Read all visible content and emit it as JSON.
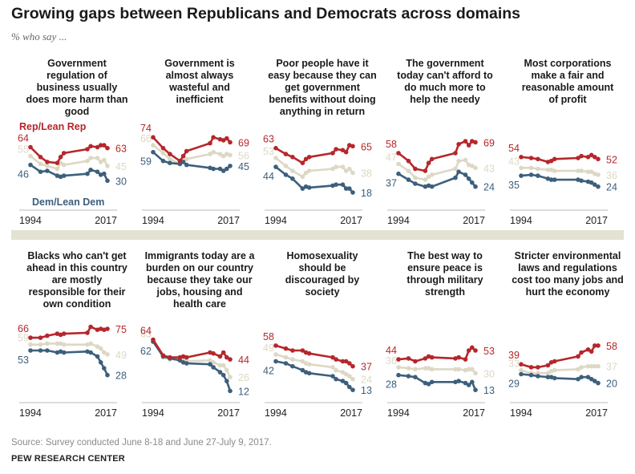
{
  "header": {
    "title": "Growing gaps between Republicans and Democrats across domains",
    "subtitle": "% who say ..."
  },
  "footer": {
    "source": "Source: Survey conducted June 8-18 and June 27-July 9, 2017.",
    "brand": "PEW RESEARCH CENTER"
  },
  "colors": {
    "rep": "#b5272b",
    "dem": "#3c5f7c",
    "total": "#ddd8c4",
    "axis": "#bbbbbb",
    "band": "#e3e2d3"
  },
  "chart_data": [
    {
      "type": "line",
      "title": "Government regulation of business usually does more harm than good",
      "x": [
        1994,
        1997,
        1999,
        2002,
        2003,
        2004,
        2011,
        2012,
        2014,
        2015,
        2016,
        2017
      ],
      "xlabels": [
        "1994",
        "2017"
      ],
      "series_labels": [
        "Rep/Lean Rep",
        "Dem/Lean Dem"
      ],
      "ylim": [
        0,
        100
      ],
      "series": [
        {
          "name": "Rep/Lean Rep",
          "values": [
            64,
            54,
            49,
            48,
            54,
            58,
            62,
            65,
            64,
            66,
            66,
            63
          ]
        },
        {
          "name": "",
          "values": [
            55,
            47,
            45,
            42,
            48,
            46,
            50,
            53,
            53,
            49,
            51,
            45
          ]
        },
        {
          "name": "Dem/Lean Dem",
          "values": [
            46,
            39,
            40,
            35,
            34,
            35,
            37,
            41,
            39,
            36,
            37,
            30
          ]
        }
      ]
    },
    {
      "type": "line",
      "title": "Government is almost always wasteful and inefficient",
      "x": [
        1994,
        1997,
        1999,
        2002,
        2003,
        2004,
        2011,
        2012,
        2014,
        2015,
        2016,
        2017
      ],
      "xlabels": [
        "1994",
        "2017"
      ],
      "series_labels": [],
      "ylim": [
        0,
        100
      ],
      "series": [
        {
          "name": "Rep/Lean Rep",
          "values": [
            74,
            63,
            57,
            50,
            55,
            60,
            68,
            74,
            72,
            71,
            73,
            69
          ]
        },
        {
          "name": "",
          "values": [
            66,
            58,
            52,
            47,
            50,
            52,
            57,
            59,
            57,
            55,
            57,
            56
          ]
        },
        {
          "name": "Dem/Lean Dem",
          "values": [
            59,
            50,
            48,
            47,
            49,
            46,
            43,
            42,
            42,
            40,
            42,
            45
          ]
        }
      ]
    },
    {
      "type": "line",
      "title": "Poor people have it easy because they can get government benefits without doing anything in return",
      "x": [
        1994,
        1997,
        1999,
        2002,
        2003,
        2004,
        2011,
        2012,
        2014,
        2015,
        2016,
        2017
      ],
      "xlabels": [
        "1994",
        "2017"
      ],
      "series_labels": [],
      "ylim": [
        0,
        100
      ],
      "series": [
        {
          "name": "Rep/Lean Rep",
          "values": [
            63,
            57,
            54,
            48,
            52,
            54,
            58,
            62,
            61,
            59,
            66,
            65
          ]
        },
        {
          "name": "",
          "values": [
            53,
            45,
            40,
            34,
            38,
            40,
            42,
            44,
            44,
            40,
            42,
            38
          ]
        },
        {
          "name": "Dem/Lean Dem",
          "values": [
            44,
            36,
            32,
            22,
            24,
            23,
            25,
            26,
            26,
            22,
            22,
            18
          ]
        }
      ]
    },
    {
      "type": "line",
      "title": "The government today can't afford to do much more to help the needy",
      "x": [
        1994,
        1997,
        1999,
        2002,
        2003,
        2004,
        2011,
        2012,
        2014,
        2015,
        2016,
        2017
      ],
      "xlabels": [
        "1994",
        "2017"
      ],
      "series_labels": [],
      "ylim": [
        0,
        100
      ],
      "series": [
        {
          "name": "Rep/Lean Rep",
          "values": [
            58,
            50,
            42,
            40,
            48,
            52,
            58,
            67,
            70,
            66,
            70,
            69
          ]
        },
        {
          "name": "",
          "values": [
            47,
            40,
            33,
            31,
            34,
            36,
            42,
            50,
            51,
            46,
            45,
            43
          ]
        },
        {
          "name": "Dem/Lean Dem",
          "values": [
            37,
            31,
            27,
            24,
            25,
            24,
            33,
            39,
            36,
            32,
            28,
            24
          ]
        }
      ]
    },
    {
      "type": "line",
      "title": "Most corporations make a fair and reasonable amount of profit",
      "x": [
        1994,
        1997,
        1999,
        2002,
        2003,
        2004,
        2011,
        2012,
        2014,
        2015,
        2016,
        2017
      ],
      "xlabels": [
        "1994",
        "2017"
      ],
      "series_labels": [],
      "ylim": [
        0,
        100
      ],
      "series": [
        {
          "name": "Rep/Lean Rep",
          "values": [
            54,
            53,
            52,
            49,
            50,
            52,
            53,
            55,
            54,
            56,
            54,
            52
          ]
        },
        {
          "name": "",
          "values": [
            43,
            43,
            42,
            41,
            41,
            40,
            40,
            40,
            39,
            39,
            37,
            36
          ]
        },
        {
          "name": "Dem/Lean Dem",
          "values": [
            35,
            36,
            35,
            32,
            31,
            31,
            31,
            30,
            29,
            28,
            26,
            24
          ]
        }
      ]
    },
    {
      "type": "line",
      "title": "Blacks who can't get ahead in this country are mostly responsible for their own condition",
      "x": [
        1994,
        1997,
        1999,
        2002,
        2003,
        2004,
        2011,
        2012,
        2014,
        2015,
        2016,
        2017
      ],
      "xlabels": [
        "1994",
        "2017"
      ],
      "series_labels": [],
      "ylim": [
        0,
        100
      ],
      "series": [
        {
          "name": "Rep/Lean Rep",
          "values": [
            66,
            66,
            68,
            70,
            69,
            70,
            71,
            77,
            74,
            75,
            74,
            75
          ]
        },
        {
          "name": "",
          "values": [
            59,
            59,
            60,
            60,
            60,
            59,
            59,
            60,
            57,
            55,
            51,
            49
          ]
        },
        {
          "name": "Dem/Lean Dem",
          "values": [
            53,
            53,
            53,
            51,
            52,
            51,
            52,
            51,
            47,
            41,
            35,
            28
          ]
        }
      ]
    },
    {
      "type": "line",
      "title": "Immigrants today are a burden on our country because they take our jobs, housing and health care",
      "x": [
        1994,
        1997,
        1999,
        2002,
        2003,
        2004,
        2011,
        2012,
        2014,
        2015,
        2016,
        2017
      ],
      "xlabels": [
        "1994",
        "2017"
      ],
      "series_labels": [],
      "ylim": [
        0,
        100
      ],
      "series": [
        {
          "name": "Rep/Lean Rep",
          "values": [
            64,
            48,
            46,
            46,
            47,
            46,
            51,
            50,
            47,
            51,
            46,
            44
          ]
        },
        {
          "name": "",
          "values": [
            63,
            46,
            44,
            44,
            43,
            42,
            43,
            41,
            38,
            38,
            33,
            26
          ]
        },
        {
          "name": "Dem/Lean Dem",
          "values": [
            62,
            47,
            45,
            43,
            41,
            40,
            39,
            36,
            31,
            28,
            22,
            12
          ]
        }
      ]
    },
    {
      "type": "line",
      "title": "Homosexuality should be discouraged by society",
      "x": [
        1994,
        1997,
        1999,
        2002,
        2003,
        2004,
        2011,
        2012,
        2014,
        2015,
        2016,
        2017
      ],
      "xlabels": [
        "1994",
        "2017"
      ],
      "series_labels": [],
      "ylim": [
        0,
        100
      ],
      "series": [
        {
          "name": "Rep/Lean Rep",
          "values": [
            58,
            55,
            53,
            53,
            51,
            50,
            46,
            44,
            42,
            42,
            40,
            37
          ]
        },
        {
          "name": "",
          "values": [
            49,
            46,
            44,
            42,
            40,
            39,
            36,
            33,
            31,
            29,
            27,
            24
          ]
        },
        {
          "name": "Dem/Lean Dem",
          "values": [
            42,
            40,
            37,
            33,
            31,
            30,
            27,
            24,
            22,
            20,
            16,
            13
          ]
        }
      ]
    },
    {
      "type": "line",
      "title": "The best way to ensure peace is through military strength",
      "x": [
        1994,
        1997,
        1999,
        2002,
        2003,
        2004,
        2011,
        2012,
        2014,
        2015,
        2016,
        2017
      ],
      "xlabels": [
        "1994",
        "2017"
      ],
      "series_labels": [],
      "ylim": [
        0,
        100
      ],
      "series": [
        {
          "name": "Rep/Lean Rep",
          "values": [
            44,
            45,
            42,
            45,
            47,
            46,
            45,
            46,
            44,
            53,
            56,
            53
          ]
        },
        {
          "name": "",
          "values": [
            36,
            35,
            34,
            35,
            35,
            34,
            34,
            34,
            33,
            34,
            34,
            30
          ]
        },
        {
          "name": "Dem/Lean Dem",
          "values": [
            28,
            27,
            26,
            20,
            19,
            21,
            21,
            22,
            20,
            18,
            21,
            13
          ]
        }
      ]
    },
    {
      "type": "line",
      "title": "Stricter environmental laws and regulations cost too many jobs and hurt the economy",
      "x": [
        1994,
        1997,
        1999,
        2002,
        2003,
        2004,
        2011,
        2012,
        2014,
        2015,
        2016,
        2017
      ],
      "xlabels": [
        "1994",
        "2017"
      ],
      "series_labels": [],
      "ylim": [
        0,
        100
      ],
      "series": [
        {
          "name": "Rep/Lean Rep",
          "values": [
            39,
            36,
            36,
            38,
            41,
            42,
            47,
            51,
            54,
            52,
            58,
            58
          ]
        },
        {
          "name": "",
          "values": [
            33,
            30,
            30,
            30,
            32,
            33,
            34,
            36,
            37,
            37,
            37,
            37
          ]
        },
        {
          "name": "Dem/Lean Dem",
          "values": [
            29,
            28,
            27,
            26,
            26,
            25,
            24,
            26,
            26,
            24,
            22,
            20
          ]
        }
      ]
    }
  ]
}
